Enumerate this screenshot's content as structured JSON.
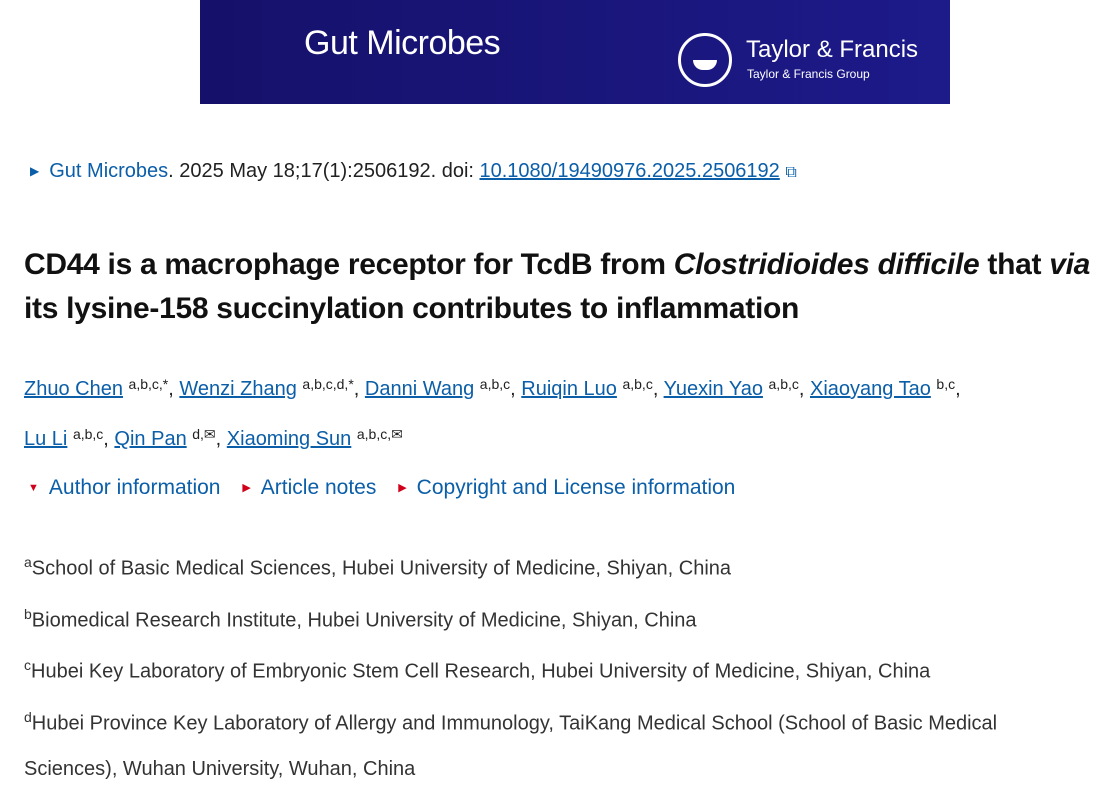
{
  "banner": {
    "journal": "Gut Microbes",
    "publisher": "Taylor & Francis",
    "publisher_group": "Taylor & Francis Group",
    "bg_color": "#15116a"
  },
  "citation": {
    "journal_link": "Gut Microbes",
    "details": ". 2025 May 18;17(1):2506192. doi: ",
    "doi": "10.1080/19490976.2025.2506192",
    "external_icon": "external-link-icon"
  },
  "title": {
    "part1": "CD44 is a macrophage receptor for TcdB from ",
    "italic1": "Clostridioides difficile",
    "part2": " that ",
    "italic2": "via",
    "part3": " its lysine-158 succinylation contributes to inflammation"
  },
  "authors": [
    {
      "name": "Zhuo Chen",
      "sup": "a,b,c,*"
    },
    {
      "name": "Wenzi Zhang",
      "sup": "a,b,c,d,*"
    },
    {
      "name": "Danni Wang",
      "sup": "a,b,c"
    },
    {
      "name": "Ruiqin Luo",
      "sup": "a,b,c"
    },
    {
      "name": "Yuexin Yao",
      "sup": "a,b,c"
    },
    {
      "name": "Xiaoyang Tao",
      "sup": "b,c"
    },
    {
      "name": "Lu Li",
      "sup": "a,b,c"
    },
    {
      "name": "Qin Pan",
      "sup": "d,✉"
    },
    {
      "name": "Xiaoming Sun",
      "sup": "a,b,c,✉"
    }
  ],
  "notes": [
    "Author information",
    "Article notes",
    "Copyright and License information"
  ],
  "affiliations": [
    {
      "key": "a",
      "text": "School of Basic Medical Sciences, Hubei University of Medicine, Shiyan, China"
    },
    {
      "key": "b",
      "text": "Biomedical Research Institute, Hubei University of Medicine, Shiyan, China"
    },
    {
      "key": "c",
      "text": "Hubei Key Laboratory of Embryonic Stem Cell Research, Hubei University of Medicine, Shiyan, China"
    },
    {
      "key": "d",
      "text": "Hubei Province Key Laboratory of Allergy and Immunology, TaiKang Medical School (School of Basic Medical Sciences), Wuhan University, Wuhan, China"
    }
  ]
}
